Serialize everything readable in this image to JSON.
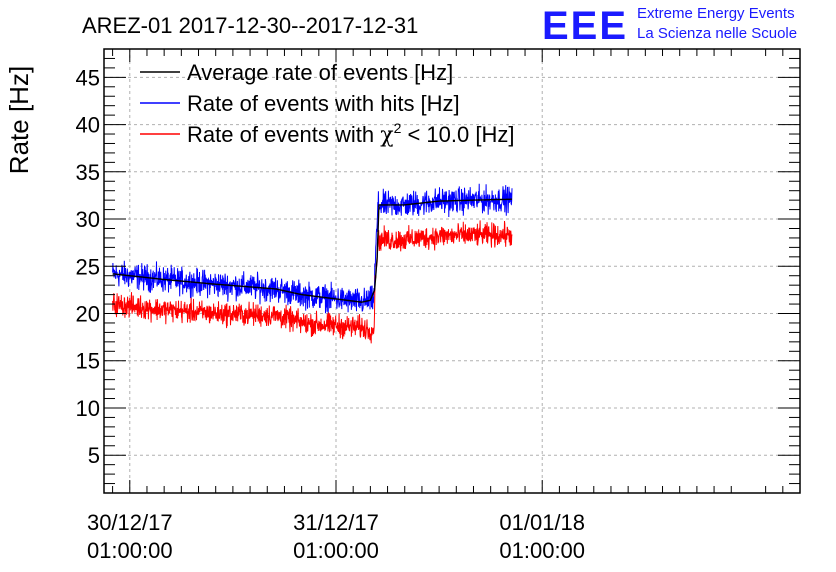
{
  "chart_data": {
    "type": "line",
    "title": "AREZ-01 2017-12-30--2017-12-31",
    "logo": {
      "letters": "EEE",
      "line1": "Extreme Energy Events",
      "line2": "La Scienza nelle Scuole",
      "color": "#1a1aff"
    },
    "ylabel": "Rate [Hz]",
    "xlabel": "",
    "ylim": [
      1,
      48
    ],
    "yticks": [
      5,
      10,
      15,
      20,
      25,
      30,
      35,
      40,
      45
    ],
    "x_unit": "hours since 2017-12-30 01:00:00",
    "xlim": [
      -3,
      78
    ],
    "xticks": [
      {
        "pos": 0,
        "line1": "30/12/17",
        "line2": "01:00:00"
      },
      {
        "pos": 24,
        "line1": "31/12/17",
        "line2": "01:00:00"
      },
      {
        "pos": 48,
        "line1": "01/01/18",
        "line2": "01:00:00"
      }
    ],
    "grid": true,
    "legend_position": "top-left",
    "series": [
      {
        "name": "Average rate of events [Hz]",
        "legend_label": "Average rate of events [Hz]",
        "color": "#000000",
        "x_range": [
          -2,
          44.5
        ],
        "knots": [
          [
            -2,
            24.2
          ],
          [
            4,
            23.6
          ],
          [
            10,
            23.1
          ],
          [
            17,
            22.6
          ],
          [
            20,
            22.0
          ],
          [
            27,
            21.2
          ],
          [
            28,
            21.4
          ],
          [
            28.5,
            22.5
          ],
          [
            28.8,
            26
          ],
          [
            29.0,
            31.5
          ],
          [
            32,
            31.5
          ],
          [
            36,
            31.9
          ],
          [
            40,
            32.0
          ],
          [
            44.5,
            32.1
          ]
        ],
        "noise": 0
      },
      {
        "name": "Rate of events with hits [Hz]",
        "legend_label": "Rate of events with hits [Hz]",
        "color": "#0000ff",
        "x_range": [
          -2,
          44.5
        ],
        "knots": [
          [
            -2,
            24.2
          ],
          [
            4,
            23.6
          ],
          [
            10,
            23.1
          ],
          [
            17,
            22.6
          ],
          [
            20,
            22.0
          ],
          [
            27,
            21.2
          ],
          [
            28,
            21.4
          ],
          [
            28.4,
            21.5
          ],
          [
            28.6,
            26
          ],
          [
            28.9,
            31.5
          ],
          [
            32,
            31.5
          ],
          [
            36,
            31.9
          ],
          [
            40,
            32.0
          ],
          [
            44.5,
            32.1
          ]
        ],
        "noise": 0.85
      },
      {
        "name": "Rate of events with chi2 < 10.0 [Hz]",
        "legend_label_parts": [
          "Rate of events with ",
          "χ",
          "2",
          " < 10.0 [Hz]"
        ],
        "color": "#ff0000",
        "x_range": [
          -2,
          44.5
        ],
        "knots": [
          [
            -2,
            21.0
          ],
          [
            4,
            20.4
          ],
          [
            10,
            20.0
          ],
          [
            17,
            19.8
          ],
          [
            20,
            19.0
          ],
          [
            27,
            18.5
          ],
          [
            28,
            18.3
          ],
          [
            28.4,
            18.2
          ],
          [
            28.6,
            24
          ],
          [
            28.9,
            27.8
          ],
          [
            32,
            27.8
          ],
          [
            36,
            28.2
          ],
          [
            40,
            28.3
          ],
          [
            44.5,
            28.3
          ]
        ],
        "noise": 0.75
      }
    ]
  }
}
